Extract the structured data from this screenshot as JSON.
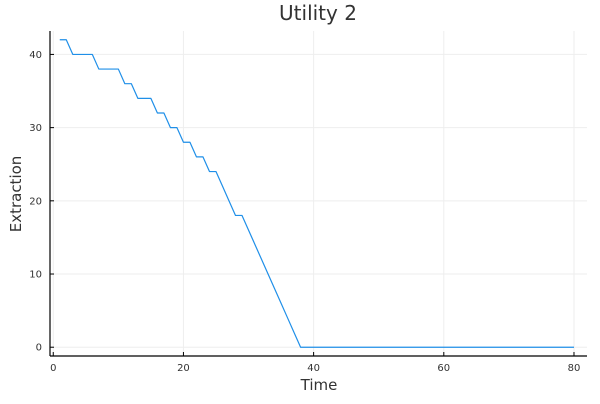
{
  "chart_data": {
    "type": "line",
    "title": "Utility 2",
    "xlabel": "Time",
    "ylabel": "Extraction",
    "xlim": [
      -0.5,
      82
    ],
    "ylim": [
      -1.2,
      43.2
    ],
    "xticks": [
      0,
      20,
      40,
      60,
      80
    ],
    "yticks": [
      0,
      10,
      20,
      30,
      40
    ],
    "grid": true,
    "legend": "none",
    "series": [
      {
        "color": "#1f8fe8",
        "x": [
          1,
          2,
          3,
          4,
          5,
          6,
          7,
          8,
          9,
          10,
          11,
          12,
          13,
          14,
          15,
          16,
          17,
          18,
          19,
          20,
          21,
          22,
          23,
          24,
          25,
          26,
          27,
          28,
          29,
          30,
          31,
          32,
          33,
          34,
          35,
          36,
          37,
          38,
          39,
          40,
          80
        ],
        "y": [
          42,
          42,
          40,
          40,
          40,
          40,
          38,
          38,
          38,
          38,
          36,
          36,
          34,
          34,
          34,
          32,
          32,
          30,
          30,
          28,
          28,
          26,
          26,
          24,
          24,
          22,
          20,
          18,
          18,
          16,
          14,
          12,
          10,
          8,
          6,
          4,
          2,
          0,
          0,
          0,
          0
        ]
      }
    ]
  }
}
